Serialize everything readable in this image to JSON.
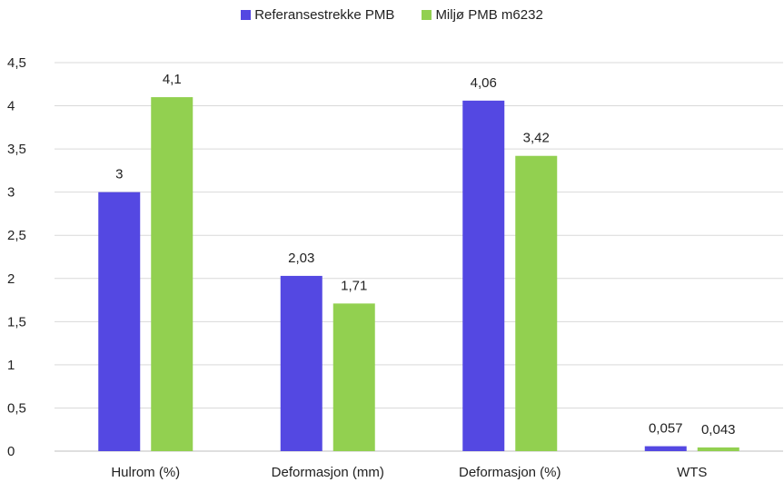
{
  "chart_data": {
    "type": "bar",
    "categories": [
      "Hulrom (%)",
      "Deformasjon (mm)",
      "Deformasjon (%)",
      "WTS"
    ],
    "series": [
      {
        "name": "Referansestrekke PMB",
        "color": "#5448E2",
        "values": [
          3,
          2.03,
          4.06,
          0.057
        ],
        "labels": [
          "3",
          "2,03",
          "4,06",
          "0,057"
        ]
      },
      {
        "name": "Miljø PMB m6232",
        "color": "#92D050",
        "values": [
          4.1,
          1.71,
          3.42,
          0.043
        ],
        "labels": [
          "4,1",
          "1,71",
          "3,42",
          "0,043"
        ]
      }
    ],
    "ylim": [
      0,
      4.5
    ],
    "yticks": [
      0,
      0.5,
      1,
      1.5,
      2,
      2.5,
      3,
      3.5,
      4,
      4.5
    ],
    "ytick_labels": [
      "0",
      "0,5",
      "1",
      "1,5",
      "2",
      "2,5",
      "3",
      "3,5",
      "4",
      "4,5"
    ],
    "grid": true,
    "legend_position": "top-center",
    "title": "",
    "xlabel": "",
    "ylabel": ""
  }
}
